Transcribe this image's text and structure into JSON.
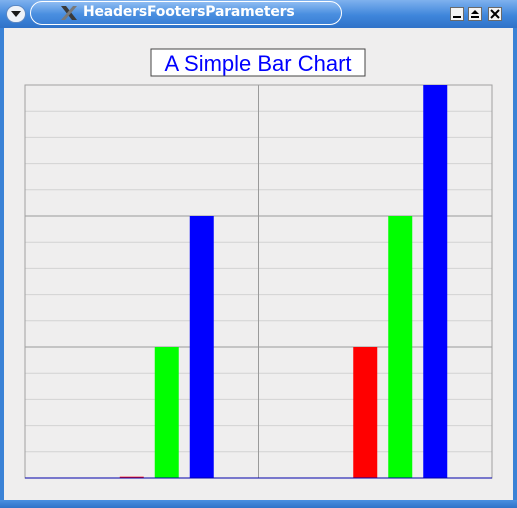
{
  "window": {
    "title": "HeadersFootersParameters",
    "icons": {
      "menu": "chevron-down-icon",
      "app": "x-logo-icon",
      "minimize": "minimize-icon",
      "maximize": "maximize-icon",
      "close": "close-icon"
    },
    "colors": {
      "titlebar": "#3f86db",
      "client_background": "#efeeee"
    }
  },
  "chart_data": {
    "type": "bar",
    "title": "A Simple Bar Chart",
    "xlabel": "",
    "ylabel": "",
    "categories": [
      "",
      ""
    ],
    "series": [
      {
        "values": [
          0.01,
          1
        ],
        "color": "#ff0000"
      },
      {
        "values": [
          1,
          2
        ],
        "color": "#00ff00"
      },
      {
        "values": [
          2,
          3
        ],
        "color": "#0000ff"
      }
    ],
    "ylim": [
      0,
      3
    ],
    "grid": true,
    "legend": "none"
  }
}
